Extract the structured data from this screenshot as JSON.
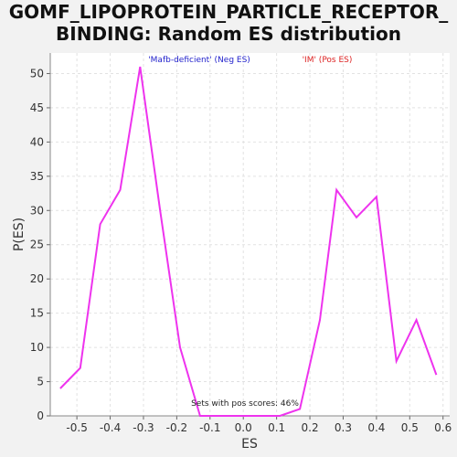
{
  "chart_data": {
    "type": "line",
    "title_line1": "GOMF_LIPOPROTEIN_PARTICLE_RECEPTOR_",
    "title_line2": "BINDING: Random ES distribution",
    "xlabel": "ES",
    "ylabel": "P(ES)",
    "xlim": [
      -0.58,
      0.62
    ],
    "ylim": [
      0,
      53
    ],
    "xticks": [
      -0.5,
      -0.4,
      -0.3,
      -0.2,
      -0.1,
      0.0,
      0.1,
      0.2,
      0.3,
      0.4,
      0.5,
      0.6
    ],
    "xtick_labels": [
      "-0.5",
      "-0.4",
      "-0.3",
      "-0.2",
      "-0.1",
      "0.0",
      "0.1",
      "0.2",
      "0.3",
      "0.4",
      "0.5",
      "0.6"
    ],
    "yticks": [
      0,
      5,
      10,
      15,
      20,
      25,
      30,
      35,
      40,
      45,
      50
    ],
    "ytick_labels": [
      "0",
      "5",
      "10",
      "15",
      "20",
      "25",
      "30",
      "35",
      "40",
      "45",
      "50"
    ],
    "grid": true,
    "series": [
      {
        "color": "#ee33ee",
        "x": [
          -0.55,
          -0.49,
          -0.43,
          -0.37,
          -0.31,
          -0.25,
          -0.19,
          -0.13,
          -0.07,
          -0.01,
          0.05,
          0.11,
          0.17,
          0.23,
          0.28,
          0.34,
          0.4,
          0.46,
          0.52,
          0.58
        ],
        "y": [
          4,
          7,
          28,
          33,
          51,
          30,
          10,
          0,
          0,
          0,
          0,
          0,
          1,
          14,
          33,
          29,
          32,
          8,
          14,
          6
        ]
      }
    ],
    "legend": {
      "neg_label": "'Mafb-deficient' (Neg ES)",
      "neg_color": "#2222cc",
      "pos_label": "'IM' (Pos ES)",
      "pos_color": "#dd2222",
      "placement": "top"
    },
    "annotation": "Sets with pos scores: 46%"
  }
}
